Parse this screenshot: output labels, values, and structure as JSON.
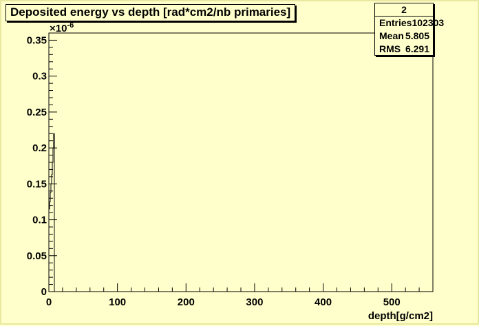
{
  "chart_data": {
    "type": "histogram",
    "title": "Deposited energy vs depth [rad*cm2/nb primaries]",
    "xlabel": "depth[g/cm2]",
    "ylabel": "",
    "y_exponent_label": "×10",
    "y_exponent_value": "-6",
    "xlim": [
      0,
      560
    ],
    "ylim": [
      0,
      0.36
    ],
    "x_ticks": [
      0,
      100,
      200,
      300,
      400,
      500
    ],
    "y_ticks": [
      0,
      0.05,
      0.1,
      0.15,
      0.2,
      0.25,
      0.3,
      0.35
    ],
    "x_tick_labels": [
      "0",
      "100",
      "200",
      "300",
      "400",
      "500"
    ],
    "y_tick_labels": [
      "0",
      "0.05",
      "0.1",
      "0.15",
      "0.2",
      "0.25",
      "0.3",
      "0.35"
    ],
    "bins": [
      {
        "x": 0.5,
        "y": 0.115
      },
      {
        "x": 1.5,
        "y": 0.125
      },
      {
        "x": 2.5,
        "y": 0.138
      },
      {
        "x": 3.5,
        "y": 0.15
      },
      {
        "x": 4.5,
        "y": 0.163
      },
      {
        "x": 5.5,
        "y": 0.18
      },
      {
        "x": 6.5,
        "y": 0.2
      },
      {
        "x": 7.5,
        "y": 0.22
      },
      {
        "x": 8.5,
        "y": 0.0
      }
    ],
    "grid": false,
    "stats": {
      "name": "2",
      "rows": [
        {
          "label": "Entries",
          "value": "102303"
        },
        {
          "label": "Mean",
          "value": "5.805"
        },
        {
          "label": "RMS",
          "value": "6.291"
        }
      ]
    },
    "colors": {
      "background": "#ffffcc",
      "frame": "#000000",
      "line": "#000000"
    }
  }
}
